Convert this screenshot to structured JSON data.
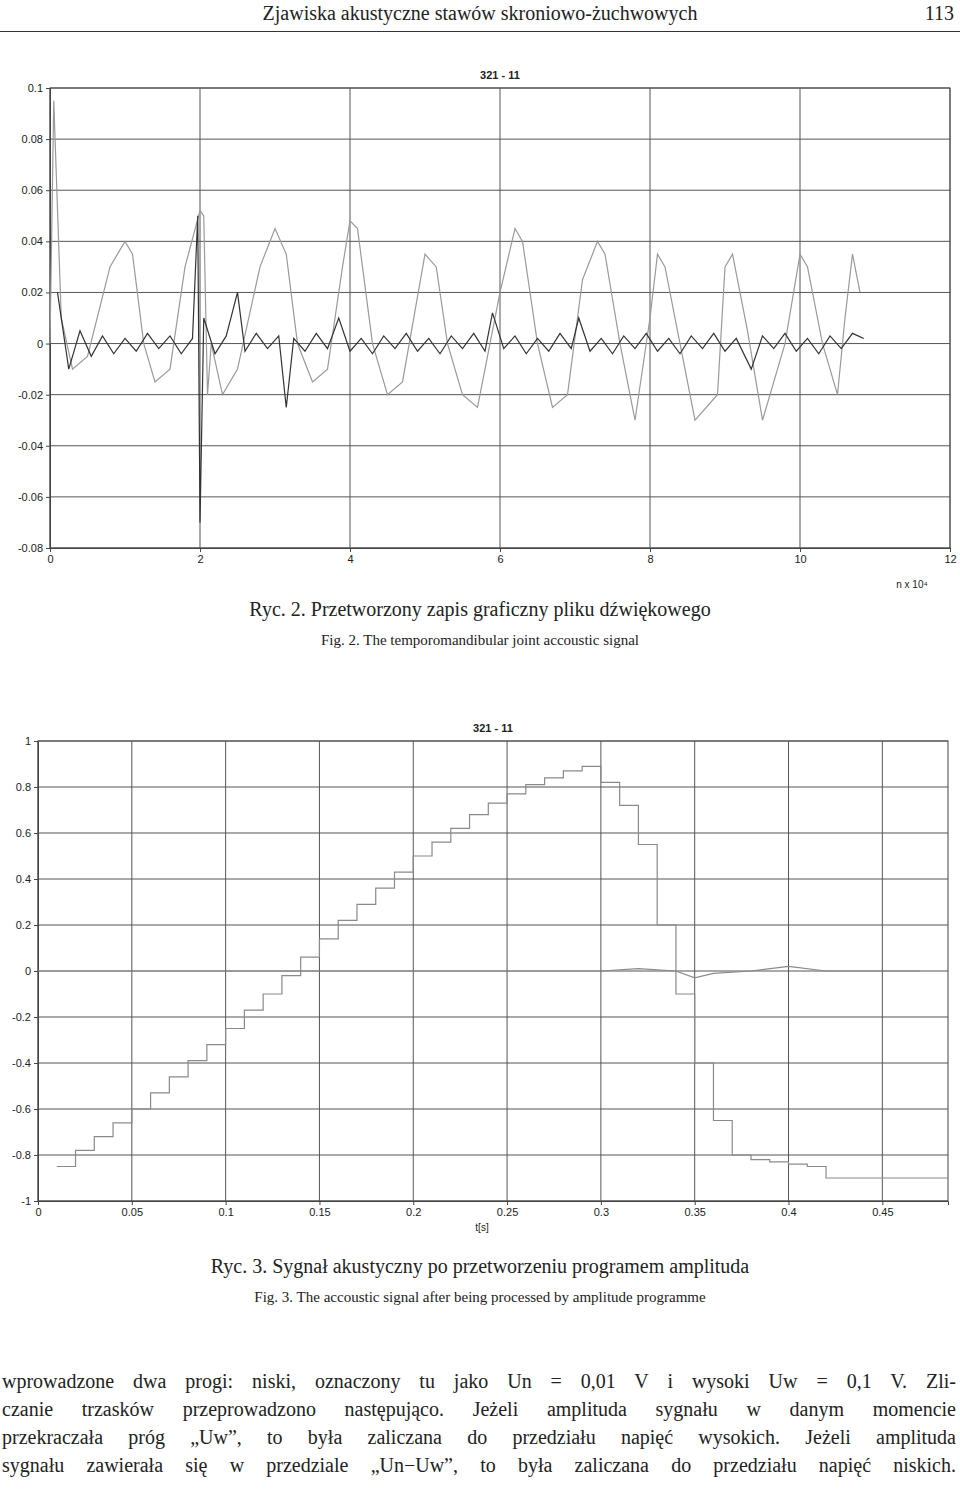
{
  "header": {
    "title": "Zjawiska akustyczne stawów skroniowo-żuchwowych",
    "page": 113
  },
  "chart_data": [
    {
      "type": "line",
      "title": "321 - 11",
      "x_label": "n x 10⁴",
      "xlim": [
        0,
        12
      ],
      "xticks": [
        0,
        2,
        4,
        6,
        8,
        10,
        12
      ],
      "ylim": [
        -0.08,
        0.1
      ],
      "yticks": [
        -0.08,
        -0.06,
        -0.04,
        -0.02,
        0,
        0.02,
        0.04,
        0.06,
        0.08,
        0.1
      ],
      "grid": true,
      "series": [
        {
          "color": "#9a9a9a",
          "x": [
            0.0,
            0.05,
            0.15,
            0.3,
            0.5,
            0.8,
            1.0,
            1.1,
            1.25,
            1.4,
            1.6,
            1.8,
            2.0,
            2.05,
            2.1,
            2.15,
            2.3,
            2.5,
            2.8,
            3.0,
            3.15,
            3.3,
            3.5,
            3.7,
            3.9,
            4.0,
            4.1,
            4.3,
            4.5,
            4.7,
            5.0,
            5.15,
            5.3,
            5.5,
            5.7,
            6.0,
            6.2,
            6.3,
            6.5,
            6.7,
            6.9,
            7.1,
            7.3,
            7.4,
            7.6,
            7.8,
            8.0,
            8.1,
            8.2,
            8.4,
            8.6,
            8.9,
            9.0,
            9.1,
            9.3,
            9.5,
            9.8,
            10.0,
            10.1,
            10.3,
            10.5,
            10.6,
            10.7,
            10.8
          ],
          "values": [
            0.0,
            0.095,
            0.01,
            -0.01,
            -0.005,
            0.03,
            0.04,
            0.035,
            0.0,
            -0.015,
            -0.01,
            0.03,
            0.052,
            0.05,
            -0.02,
            0.0,
            -0.02,
            -0.01,
            0.03,
            0.045,
            0.035,
            0.0,
            -0.015,
            -0.01,
            0.03,
            0.048,
            0.045,
            0.0,
            -0.02,
            -0.015,
            0.035,
            0.03,
            0.0,
            -0.02,
            -0.025,
            0.02,
            0.045,
            0.04,
            0.0,
            -0.025,
            -0.02,
            0.025,
            0.04,
            0.035,
            0.0,
            -0.03,
            0.01,
            0.035,
            0.03,
            0.0,
            -0.03,
            -0.02,
            0.03,
            0.035,
            0.005,
            -0.03,
            0.0,
            0.035,
            0.03,
            0.0,
            -0.02,
            0.01,
            0.035,
            0.02
          ]
        },
        {
          "color": "#333333",
          "x": [
            0.1,
            0.25,
            0.4,
            0.55,
            0.7,
            0.85,
            1.0,
            1.15,
            1.3,
            1.45,
            1.6,
            1.75,
            1.9,
            1.97,
            2.0,
            2.05,
            2.2,
            2.35,
            2.5,
            2.6,
            2.75,
            2.9,
            3.05,
            3.15,
            3.25,
            3.4,
            3.55,
            3.7,
            3.85,
            4.0,
            4.15,
            4.3,
            4.45,
            4.6,
            4.75,
            4.9,
            5.05,
            5.2,
            5.35,
            5.5,
            5.65,
            5.8,
            5.9,
            6.05,
            6.2,
            6.35,
            6.5,
            6.65,
            6.8,
            6.95,
            7.05,
            7.2,
            7.35,
            7.5,
            7.65,
            7.8,
            7.95,
            8.1,
            8.25,
            8.4,
            8.55,
            8.7,
            8.85,
            9.0,
            9.15,
            9.35,
            9.5,
            9.65,
            9.8,
            9.95,
            10.1,
            10.25,
            10.4,
            10.55,
            10.7,
            10.85
          ],
          "values": [
            0.02,
            -0.01,
            0.005,
            -0.005,
            0.003,
            -0.004,
            0.002,
            -0.003,
            0.004,
            -0.002,
            0.003,
            -0.004,
            0.002,
            0.05,
            -0.07,
            0.01,
            -0.004,
            0.003,
            0.02,
            -0.003,
            0.004,
            -0.002,
            0.003,
            -0.025,
            0.002,
            -0.003,
            0.004,
            -0.002,
            0.01,
            -0.003,
            0.002,
            -0.004,
            0.003,
            -0.002,
            0.004,
            -0.003,
            0.002,
            -0.004,
            0.003,
            -0.002,
            0.004,
            -0.003,
            0.012,
            -0.002,
            0.003,
            -0.004,
            0.002,
            -0.003,
            0.004,
            -0.002,
            0.01,
            -0.003,
            0.002,
            -0.004,
            0.003,
            -0.002,
            0.004,
            -0.003,
            0.002,
            -0.004,
            0.003,
            -0.002,
            0.004,
            -0.003,
            0.002,
            -0.01,
            0.003,
            -0.002,
            0.004,
            -0.003,
            0.002,
            -0.004,
            0.003,
            -0.002,
            0.004,
            0.002
          ]
        }
      ]
    },
    {
      "type": "line",
      "title": "321 - 11",
      "x_label": "t[s]",
      "xlim": [
        0,
        0.485
      ],
      "xticks": [
        0,
        0.05,
        0.1,
        0.15,
        0.2,
        0.25,
        0.3,
        0.35,
        0.4,
        0.45
      ],
      "ylim": [
        -1,
        1
      ],
      "yticks": [
        -1,
        -0.8,
        -0.6,
        -0.4,
        -0.2,
        0,
        0.2,
        0.4,
        0.6,
        0.8,
        1
      ],
      "grid": true,
      "series": [
        {
          "type": "step",
          "color": "#8a8a8a",
          "x": [
            0.01,
            0.02,
            0.03,
            0.04,
            0.05,
            0.06,
            0.07,
            0.08,
            0.09,
            0.1,
            0.11,
            0.12,
            0.13,
            0.14,
            0.15,
            0.16,
            0.17,
            0.18,
            0.19,
            0.2,
            0.21,
            0.22,
            0.23,
            0.24,
            0.25,
            0.26,
            0.27,
            0.28,
            0.29,
            0.3,
            0.31,
            0.32,
            0.33,
            0.34,
            0.35,
            0.36,
            0.37,
            0.38,
            0.39,
            0.4,
            0.41,
            0.42,
            0.485
          ],
          "values": [
            -0.85,
            -0.78,
            -0.72,
            -0.66,
            -0.6,
            -0.53,
            -0.46,
            -0.39,
            -0.32,
            -0.25,
            -0.17,
            -0.1,
            -0.02,
            0.06,
            0.14,
            0.22,
            0.29,
            0.36,
            0.43,
            0.5,
            0.56,
            0.62,
            0.68,
            0.73,
            0.77,
            0.81,
            0.84,
            0.87,
            0.89,
            0.82,
            0.72,
            0.55,
            0.2,
            -0.1,
            -0.4,
            -0.65,
            -0.8,
            -0.82,
            -0.83,
            -0.84,
            -0.85,
            -0.9,
            -0.9
          ]
        },
        {
          "type": "line",
          "color": "#8a8a8a",
          "x": [
            0.0,
            0.1,
            0.2,
            0.3,
            0.32,
            0.34,
            0.35,
            0.36,
            0.38,
            0.4,
            0.42,
            0.45,
            0.47
          ],
          "values": [
            0.0,
            0.0,
            0.0,
            0.0,
            0.01,
            0.0,
            -0.03,
            -0.01,
            0.0,
            0.02,
            0.0,
            0.0,
            0.0
          ]
        }
      ]
    }
  ],
  "captions": [
    {
      "pl": "Ryc. 2. Przetworzony zapis graficzny pliku dźwiękowego",
      "en": "Fig. 2. The temporomandibular joint accoustic signal"
    },
    {
      "pl": "Ryc. 3. Sygnał akustyczny po przetworzeniu programem amplituda",
      "en": "Fig. 3. The accoustic signal after being processed by amplitude programme"
    }
  ],
  "body": {
    "lines": [
      "wprowadzone dwa progi: niski, oznaczony tu jako Un = 0,01 V i wysoki Uw = 0,1 V. Zli-",
      "czanie trzasków przeprowadzono następująco. Jeżeli amplituda sygnału w danym momencie",
      "przekraczała próg „Uw”, to była zaliczana do przedziału napięć wysokich. Jeżeli amplituda",
      "sygnału zawierała się w przedziale „Un−Uw”, to była zaliczana do przedziału napięć niskich."
    ]
  }
}
